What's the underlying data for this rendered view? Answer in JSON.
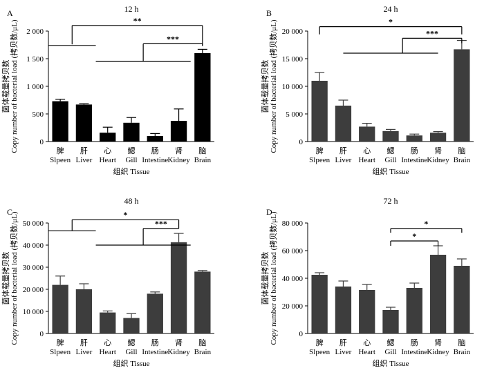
{
  "chart_data": [
    {
      "type": "bar",
      "panel_label": "A",
      "title": "12 h",
      "xlabel": "组织 Tissue",
      "ylabel_zh": "菌体载量拷贝数",
      "ylabel_en": "Copy number of bacterial load (拷贝数/μL)",
      "categories": [
        {
          "zh": "脾",
          "en": "Slpeen"
        },
        {
          "zh": "肝",
          "en": "Liver"
        },
        {
          "zh": "心",
          "en": "Heart"
        },
        {
          "zh": "鳃",
          "en": "Gill"
        },
        {
          "zh": "肠",
          "en": "Intestine"
        },
        {
          "zh": "肾",
          "en": "Kidney"
        },
        {
          "zh": "脑",
          "en": "Brain"
        }
      ],
      "values": [
        730,
        670,
        160,
        340,
        100,
        375,
        1600
      ],
      "errors": [
        35,
        15,
        100,
        95,
        45,
        215,
        70
      ],
      "ylim": [
        0,
        2000
      ],
      "yticks": [
        "0",
        "500",
        "1 000",
        "1 500",
        "2 000"
      ],
      "bar_color": "#000000",
      "brackets": [
        {
          "label": "**",
          "top": 2100,
          "left_stem": {
            "x": 0.5,
            "bottom": 1760,
            "h_from": -0.5,
            "h_to": 1.5,
            "h_y": 1740
          },
          "right_stem": {
            "x": 6,
            "bottom": 1730
          }
        },
        {
          "label": "***",
          "top": 1770,
          "left_stem": {
            "x": 3.5,
            "bottom": 1460,
            "h_from": 1.5,
            "h_to": 5.5,
            "h_y": 1450
          },
          "right_stem": {
            "x": 6,
            "bottom": 1730
          }
        }
      ]
    },
    {
      "type": "bar",
      "panel_label": "B",
      "title": "24 h",
      "xlabel": "组织 Tissue",
      "ylabel_zh": "菌体载量拷贝数",
      "ylabel_en": "Copy number of bacterial load (拷贝数/μL)",
      "categories": [
        {
          "zh": "脾",
          "en": "Slpeen"
        },
        {
          "zh": "肝",
          "en": "Liver"
        },
        {
          "zh": "心",
          "en": "Heart"
        },
        {
          "zh": "鳃",
          "en": "Gill"
        },
        {
          "zh": "肠",
          "en": "Intestine"
        },
        {
          "zh": "肾",
          "en": "Kidney"
        },
        {
          "zh": "脑",
          "en": "Brain"
        }
      ],
      "values": [
        11000,
        6500,
        2700,
        1900,
        1100,
        1600,
        16700
      ],
      "errors": [
        1500,
        1000,
        600,
        300,
        250,
        200,
        1600
      ],
      "ylim": [
        0,
        20000
      ],
      "yticks": [
        "0",
        "5 000",
        "10 000",
        "15 000",
        "20 000"
      ],
      "bar_color": "#3d3d3d",
      "brackets": [
        {
          "label": "*",
          "top": 20800,
          "left_stem": {
            "x": 0,
            "bottom": 19400
          },
          "right_stem": {
            "x": 6,
            "bottom": 19400
          }
        },
        {
          "label": "***",
          "top": 18700,
          "left_stem": {
            "x": 3.5,
            "bottom": 16000,
            "h_from": 1,
            "h_to": 5,
            "h_y": 16000
          },
          "right_stem": {
            "x": 6,
            "bottom": 17800
          }
        }
      ]
    },
    {
      "type": "bar",
      "panel_label": "C",
      "title": "48 h",
      "xlabel": "组织 Tissue",
      "ylabel_zh": "菌体载量拷贝数",
      "ylabel_en": "Copy number of bacterial load (拷贝数/μL)",
      "categories": [
        {
          "zh": "脾",
          "en": "Slpeen"
        },
        {
          "zh": "肝",
          "en": "Liver"
        },
        {
          "zh": "心",
          "en": "Heart"
        },
        {
          "zh": "鳃",
          "en": "Gill"
        },
        {
          "zh": "肠",
          "en": "Intestine"
        },
        {
          "zh": "肾",
          "en": "Kidney"
        },
        {
          "zh": "脑",
          "en": "Brain"
        }
      ],
      "values": [
        22000,
        20000,
        9500,
        7000,
        18000,
        41300,
        28000
      ],
      "errors": [
        4000,
        2500,
        700,
        2000,
        800,
        4000,
        500
      ],
      "ylim": [
        0,
        50000
      ],
      "yticks": [
        "0",
        "10 000",
        "20 000",
        "30 000",
        "40 000",
        "50 000"
      ],
      "bar_color": "#3d3d3d",
      "brackets": [
        {
          "label": "*",
          "top": 51500,
          "left_stem": {
            "x": 0.5,
            "bottom": 46500,
            "h_from": -0.5,
            "h_to": 1.5,
            "h_y": 46500
          },
          "right_stem": {
            "x": 5,
            "bottom": 47500
          }
        },
        {
          "label": "***",
          "top": 47500,
          "left_stem": {
            "x": 3.5,
            "bottom": 40000,
            "h_from": 1.5,
            "h_to": 5.5,
            "h_y": 40000
          },
          "right_stem": {
            "x": 5,
            "bottom": 47500
          }
        }
      ]
    },
    {
      "type": "bar",
      "panel_label": "D",
      "title": "72 h",
      "xlabel": "组织 Tissue",
      "ylabel_zh": "菌体载量拷贝数",
      "ylabel_en": "Copy number of bacterial load (拷贝数/μL)",
      "categories": [
        {
          "zh": "脾",
          "en": "Slpeen"
        },
        {
          "zh": "肝",
          "en": "Liver"
        },
        {
          "zh": "心",
          "en": "Heart"
        },
        {
          "zh": "鳃",
          "en": "Gill"
        },
        {
          "zh": "肠",
          "en": "Intestine"
        },
        {
          "zh": "肾",
          "en": "Kidney"
        },
        {
          "zh": "脑",
          "en": "Brain"
        }
      ],
      "values": [
        42500,
        34000,
        31500,
        17000,
        33000,
        57000,
        49000
      ],
      "errors": [
        1500,
        4000,
        4000,
        2000,
        3500,
        6500,
        5000
      ],
      "ylim": [
        0,
        80000
      ],
      "yticks": [
        "0",
        "20 000",
        "40 000",
        "60 000",
        "80 000"
      ],
      "bar_color": "#3d3d3d",
      "brackets": [
        {
          "label": "*",
          "top": 76000,
          "left_stem": {
            "x": 3,
            "bottom": 73000
          },
          "right_stem": {
            "x": 6,
            "bottom": 73000
          }
        },
        {
          "label": "*",
          "top": 67000,
          "left_stem": {
            "x": 3,
            "bottom": 63500
          },
          "right_stem": {
            "x": 5,
            "bottom": 63500
          }
        }
      ]
    }
  ]
}
